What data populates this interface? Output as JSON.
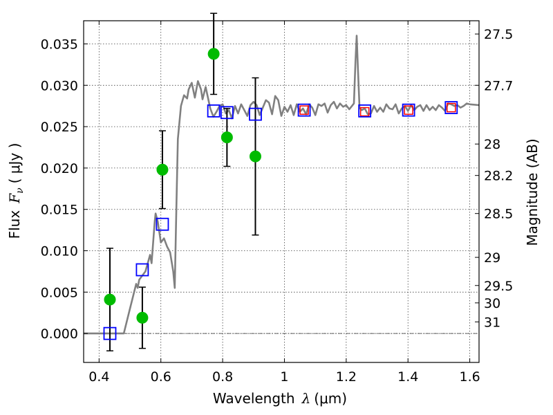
{
  "chart_data": {
    "type": "scatter",
    "xlabel_text": "Wavelength",
    "xlabel_symbol": "λ",
    "xlabel_unit": "(μm)",
    "ylabel_text": "Flux",
    "ylabel_symbol": "F",
    "ylabel_subscript": "ν",
    "ylabel_unit": "( μJy )",
    "y2label": "Magnitude (AB)",
    "xlim": [
      0.35,
      1.63
    ],
    "ylim": [
      -0.0035,
      0.0378
    ],
    "xticks": [
      0.4,
      0.6,
      0.8,
      1.0,
      1.2,
      1.4,
      1.6
    ],
    "xtick_labels": [
      "0.4",
      "0.6",
      "0.8",
      "1",
      "1.2",
      "1.4",
      "1.6"
    ],
    "yticks": [
      0.0,
      0.005,
      0.01,
      0.015,
      0.02,
      0.025,
      0.03,
      0.035
    ],
    "ytick_labels": [
      "0.000",
      "0.005",
      "0.010",
      "0.015",
      "0.020",
      "0.025",
      "0.030",
      "0.035"
    ],
    "mag_ticks": [
      {
        "label": "27.5",
        "flux": 0.0362
      },
      {
        "label": "27.7",
        "flux": 0.03
      },
      {
        "label": "28",
        "flux": 0.0229
      },
      {
        "label": "28.2",
        "flux": 0.0191
      },
      {
        "label": "28.5",
        "flux": 0.0145
      },
      {
        "label": "29",
        "flux": 0.0092
      },
      {
        "label": "29.5",
        "flux": 0.0058
      },
      {
        "label": "30",
        "flux": 0.0037
      },
      {
        "label": "31",
        "flux": 0.0014
      }
    ],
    "grid": true,
    "series": [
      {
        "name": "model spectrum",
        "kind": "line",
        "color": "#808080",
        "points": [
          [
            0.35,
            0.0
          ],
          [
            0.45,
            0.0
          ],
          [
            0.48,
            0.0
          ],
          [
            0.5,
            0.003
          ],
          [
            0.52,
            0.006
          ],
          [
            0.525,
            0.0055
          ],
          [
            0.53,
            0.0065
          ],
          [
            0.55,
            0.0075
          ],
          [
            0.565,
            0.0095
          ],
          [
            0.57,
            0.0085
          ],
          [
            0.58,
            0.0135
          ],
          [
            0.583,
            0.0145
          ],
          [
            0.59,
            0.0135
          ],
          [
            0.6,
            0.011
          ],
          [
            0.61,
            0.0115
          ],
          [
            0.62,
            0.0105
          ],
          [
            0.63,
            0.0098
          ],
          [
            0.64,
            0.0075
          ],
          [
            0.645,
            0.0055
          ],
          [
            0.65,
            0.015
          ],
          [
            0.655,
            0.0235
          ],
          [
            0.665,
            0.0275
          ],
          [
            0.675,
            0.0288
          ],
          [
            0.685,
            0.0284
          ],
          [
            0.69,
            0.0295
          ],
          [
            0.7,
            0.0303
          ],
          [
            0.71,
            0.0285
          ],
          [
            0.72,
            0.0305
          ],
          [
            0.73,
            0.0295
          ],
          [
            0.735,
            0.0283
          ],
          [
            0.745,
            0.0298
          ],
          [
            0.76,
            0.0272
          ],
          [
            0.77,
            0.0262
          ],
          [
            0.78,
            0.0268
          ],
          [
            0.79,
            0.0275
          ],
          [
            0.8,
            0.0277
          ],
          [
            0.81,
            0.0266
          ],
          [
            0.82,
            0.027
          ],
          [
            0.83,
            0.026
          ],
          [
            0.84,
            0.0275
          ],
          [
            0.85,
            0.0266
          ],
          [
            0.86,
            0.0277
          ],
          [
            0.87,
            0.027
          ],
          [
            0.88,
            0.0263
          ],
          [
            0.89,
            0.0276
          ],
          [
            0.9,
            0.028
          ],
          [
            0.91,
            0.0276
          ],
          [
            0.92,
            0.0264
          ],
          [
            0.93,
            0.0273
          ],
          [
            0.94,
            0.0282
          ],
          [
            0.95,
            0.0279
          ],
          [
            0.96,
            0.0265
          ],
          [
            0.97,
            0.0287
          ],
          [
            0.98,
            0.0282
          ],
          [
            0.99,
            0.0263
          ],
          [
            1.0,
            0.0274
          ],
          [
            1.01,
            0.0268
          ],
          [
            1.02,
            0.0276
          ],
          [
            1.03,
            0.0264
          ],
          [
            1.04,
            0.0277
          ],
          [
            1.05,
            0.0268
          ],
          [
            1.06,
            0.0272
          ],
          [
            1.07,
            0.0265
          ],
          [
            1.08,
            0.0277
          ],
          [
            1.09,
            0.0273
          ],
          [
            1.1,
            0.0264
          ],
          [
            1.11,
            0.0277
          ],
          [
            1.12,
            0.0275
          ],
          [
            1.13,
            0.0278
          ],
          [
            1.14,
            0.0267
          ],
          [
            1.15,
            0.0276
          ],
          [
            1.16,
            0.028
          ],
          [
            1.17,
            0.0272
          ],
          [
            1.18,
            0.0278
          ],
          [
            1.19,
            0.0274
          ],
          [
            1.2,
            0.0276
          ],
          [
            1.21,
            0.0271
          ],
          [
            1.225,
            0.0278
          ],
          [
            1.23,
            0.033
          ],
          [
            1.234,
            0.036
          ],
          [
            1.238,
            0.032
          ],
          [
            1.243,
            0.0273
          ],
          [
            1.25,
            0.027
          ],
          [
            1.26,
            0.0272
          ],
          [
            1.27,
            0.0265
          ],
          [
            1.28,
            0.0266
          ],
          [
            1.29,
            0.0275
          ],
          [
            1.3,
            0.0268
          ],
          [
            1.31,
            0.0273
          ],
          [
            1.32,
            0.0268
          ],
          [
            1.33,
            0.0277
          ],
          [
            1.34,
            0.0272
          ],
          [
            1.35,
            0.0271
          ],
          [
            1.36,
            0.0277
          ],
          [
            1.37,
            0.0266
          ],
          [
            1.38,
            0.0272
          ],
          [
            1.39,
            0.0275
          ],
          [
            1.4,
            0.0269
          ],
          [
            1.41,
            0.0276
          ],
          [
            1.42,
            0.027
          ],
          [
            1.43,
            0.0274
          ],
          [
            1.44,
            0.0276
          ],
          [
            1.45,
            0.0269
          ],
          [
            1.46,
            0.0276
          ],
          [
            1.47,
            0.027
          ],
          [
            1.48,
            0.0274
          ],
          [
            1.49,
            0.027
          ],
          [
            1.5,
            0.0276
          ],
          [
            1.51,
            0.0273
          ],
          [
            1.52,
            0.0269
          ],
          [
            1.53,
            0.0278
          ],
          [
            1.54,
            0.0277
          ],
          [
            1.55,
            0.0275
          ],
          [
            1.56,
            0.0276
          ],
          [
            1.57,
            0.0273
          ],
          [
            1.58,
            0.0275
          ],
          [
            1.59,
            0.0278
          ],
          [
            1.6,
            0.0277
          ],
          [
            1.63,
            0.0276
          ]
        ]
      },
      {
        "name": "model photometry (open squares)",
        "kind": "square",
        "color": "#0000ff",
        "points": [
          [
            0.435,
            0.0
          ],
          [
            0.54,
            0.0077
          ],
          [
            0.605,
            0.0132
          ],
          [
            0.771,
            0.0269
          ],
          [
            0.814,
            0.0267
          ],
          [
            0.906,
            0.0265
          ],
          [
            1.064,
            0.027
          ],
          [
            1.26,
            0.0269
          ],
          [
            1.402,
            0.027
          ],
          [
            1.54,
            0.0273
          ]
        ]
      },
      {
        "name": "model photometry (red)",
        "kind": "red-square",
        "color": "#ff0000",
        "points": [
          [
            1.064,
            0.027
          ],
          [
            1.26,
            0.0268
          ],
          [
            1.402,
            0.027
          ],
          [
            1.54,
            0.0273
          ]
        ]
      },
      {
        "name": "observed flux",
        "kind": "point",
        "color": "#00bb00",
        "points": [
          [
            0.435,
            0.0041
          ],
          [
            0.54,
            0.0019
          ],
          [
            0.605,
            0.0198
          ],
          [
            0.771,
            0.0338
          ],
          [
            0.814,
            0.0237
          ],
          [
            0.906,
            0.0214
          ]
        ],
        "errors": [
          0.0062,
          0.0037,
          0.0047,
          0.0049,
          0.0035,
          0.0095
        ]
      }
    ]
  }
}
